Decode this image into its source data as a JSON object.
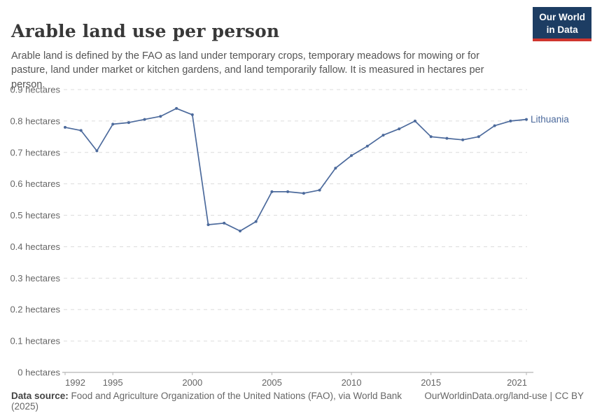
{
  "header": {
    "title": "Arable land use per person",
    "subtitle": "Arable land is defined by the FAO as land under temporary crops, temporary meadows for mowing or for pasture, land under market or kitchen gardens, and land temporarily fallow. It is measured in hectares per person.",
    "logo": {
      "line1": "Our World",
      "line2": "in Data"
    }
  },
  "chart_data": {
    "type": "line",
    "title": "Arable land use per person",
    "unit": "hectares",
    "ylabel": "",
    "xlabel": "",
    "ylim": [
      0,
      0.9
    ],
    "ytick_step": 0.1,
    "ytick_suffix": " hectares",
    "xticks": [
      1992,
      1995,
      2000,
      2005,
      2010,
      2015,
      2021
    ],
    "grid": "dashed-horizontal",
    "legend_position": "end-of-line-label",
    "x": [
      1992,
      1993,
      1994,
      1995,
      1996,
      1997,
      1998,
      1999,
      2000,
      2001,
      2002,
      2003,
      2004,
      2005,
      2006,
      2007,
      2008,
      2009,
      2010,
      2011,
      2012,
      2013,
      2014,
      2015,
      2016,
      2017,
      2018,
      2019,
      2020,
      2021
    ],
    "series": [
      {
        "name": "Lithuania",
        "color": "#4C6A9C",
        "values": [
          0.78,
          0.77,
          0.705,
          0.79,
          0.795,
          0.805,
          0.815,
          0.84,
          0.82,
          0.47,
          0.475,
          0.45,
          0.48,
          0.575,
          0.575,
          0.57,
          0.58,
          0.65,
          0.69,
          0.72,
          0.755,
          0.775,
          0.8,
          0.75,
          0.745,
          0.74,
          0.75,
          0.785,
          0.8,
          0.805
        ]
      }
    ]
  },
  "footer": {
    "source_label": "Data source:",
    "source_text": " Food and Agriculture Organization of the United Nations (FAO), via World Bank (2025)",
    "link_text": "OurWorldinData.org/land-use | CC BY"
  },
  "colors": {
    "line": "#4C6A9C",
    "grid": "#dcdcdc",
    "axis": "#a0a0a0",
    "tick_label": "#666666",
    "logo_bg": "#1d3d63",
    "logo_red": "#cf352e"
  }
}
